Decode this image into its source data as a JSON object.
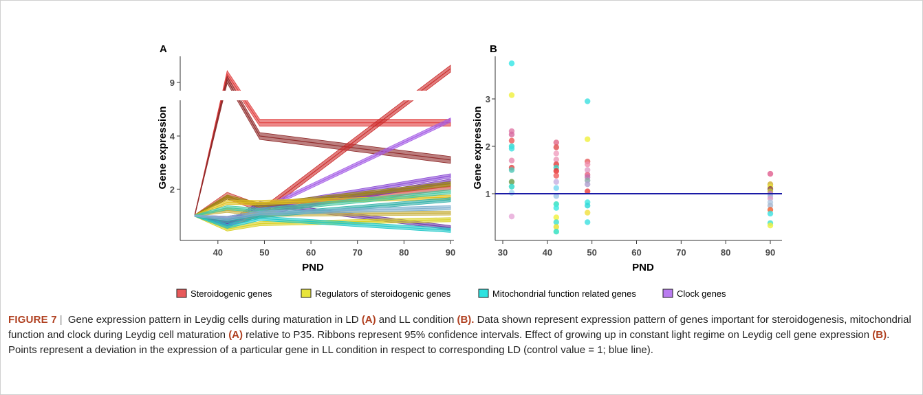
{
  "caption": {
    "figure_label": "FIGURE 7",
    "separator": "|",
    "parts": [
      {
        "text": " Gene expression pattern in Leydig cells during maturation in LD ",
        "bold": false
      },
      {
        "text": "(A)",
        "bold": true
      },
      {
        "text": " and LL condition ",
        "bold": false
      },
      {
        "text": "(B).",
        "bold": true
      },
      {
        "text": " Data shown represent expression pattern of genes important for steroidogenesis, mitochondrial function and clock during Leydig cell maturation ",
        "bold": false
      },
      {
        "text": "(A)",
        "bold": true
      },
      {
        "text": " relative to P35. Ribbons represent 95% confidence intervals. Effect of growing up in constant light regime on Leydig cell gene expression ",
        "bold": false
      },
      {
        "text": "(B)",
        "bold": true
      },
      {
        "text": ". Points represent a deviation in the expression of a particular gene in LL condition in respect to corresponding LD (control value = 1; blue line).",
        "bold": false
      }
    ]
  },
  "legend": [
    {
      "label": "Steroidogenic genes",
      "color": "#e8595a"
    },
    {
      "label": "Regulators of steroidogenic genes",
      "color": "#e8e43a"
    },
    {
      "label": "Mitochondrial function related genes",
      "color": "#2ee3e0"
    },
    {
      "label": "Clock genes",
      "color": "#b97cf0"
    }
  ],
  "chart_data": [
    {
      "panel": "A",
      "type": "line",
      "xlabel": "PND",
      "ylabel": "Gene expression",
      "xlim": [
        33,
        90
      ],
      "xticks": [
        40,
        50,
        60,
        70,
        80,
        90
      ],
      "yticks": [
        2,
        4,
        9
      ],
      "axis_break": "between 5 and 9",
      "ribbons": "95% confidence intervals",
      "series": [
        {
          "group": "Steroidogenic genes",
          "color": "#e03c3c",
          "x": [
            35,
            42,
            49,
            90
          ],
          "y": [
            1.0,
            9.3,
            4.5,
            4.5
          ]
        },
        {
          "group": "Steroidogenic genes",
          "color": "#8f2a2a",
          "x": [
            35,
            42,
            49,
            90
          ],
          "y": [
            1.0,
            9.1,
            4.0,
            3.1
          ]
        },
        {
          "group": "Steroidogenic genes",
          "color": "#cc2a2a",
          "x": [
            35,
            42,
            49,
            90
          ],
          "y": [
            1.0,
            0.7,
            1.1,
            9.5
          ]
        },
        {
          "group": "Steroidogenic genes",
          "color": "#d04a40",
          "x": [
            35,
            42,
            49,
            90
          ],
          "y": [
            1.0,
            1.75,
            1.3,
            2.1
          ]
        },
        {
          "group": "Clock genes",
          "color": "#a45ce6",
          "x": [
            35,
            42,
            49,
            90
          ],
          "y": [
            1.0,
            0.8,
            1.2,
            4.6
          ]
        },
        {
          "group": "Clock genes",
          "color": "#8c4cd6",
          "x": [
            35,
            42,
            49,
            90
          ],
          "y": [
            1.0,
            0.6,
            1.3,
            2.5
          ]
        },
        {
          "group": "Clock genes",
          "color": "#7d3fb8",
          "x": [
            35,
            42,
            49,
            90
          ],
          "y": [
            1.0,
            0.9,
            1.1,
            2.3
          ]
        },
        {
          "group": "Clock genes",
          "color": "#6a3aa8",
          "x": [
            35,
            42,
            49,
            90
          ],
          "y": [
            1.0,
            0.7,
            1.45,
            0.55
          ]
        },
        {
          "group": "Regulators of steroidogenic genes",
          "color": "#9a8a10",
          "x": [
            35,
            42,
            49,
            90
          ],
          "y": [
            1.0,
            1.7,
            1.4,
            2.2
          ]
        },
        {
          "group": "Regulators of steroidogenic genes",
          "color": "#e0c020",
          "x": [
            35,
            42,
            49,
            90
          ],
          "y": [
            1.0,
            1.5,
            1.5,
            1.7
          ]
        },
        {
          "group": "Regulators of steroidogenic genes",
          "color": "#d8d020",
          "x": [
            35,
            42,
            49,
            90
          ],
          "y": [
            1.0,
            0.5,
            0.7,
            0.85
          ]
        },
        {
          "group": "Regulators of steroidogenic genes",
          "color": "#c8b040",
          "x": [
            35,
            42,
            49,
            90
          ],
          "y": [
            1.0,
            1.2,
            1.05,
            1.1
          ]
        },
        {
          "group": "Mitochondrial function related genes",
          "color": "#20c8c8",
          "x": [
            35,
            42,
            49,
            90
          ],
          "y": [
            1.0,
            0.6,
            0.9,
            0.45
          ]
        },
        {
          "group": "Mitochondrial function related genes",
          "color": "#30b0a8",
          "x": [
            35,
            42,
            49,
            90
          ],
          "y": [
            1.0,
            0.8,
            1.0,
            1.6
          ]
        },
        {
          "group": "Mitochondrial function related genes",
          "color": "#48c8a0",
          "x": [
            35,
            42,
            49,
            90
          ],
          "y": [
            1.0,
            1.3,
            1.2,
            1.9
          ]
        },
        {
          "group": "Mitochondrial function related genes",
          "color": "#7fb0d0",
          "x": [
            35,
            42,
            49,
            90
          ],
          "y": [
            1.0,
            0.9,
            1.1,
            1.3
          ]
        }
      ]
    },
    {
      "panel": "B",
      "type": "scatter",
      "xlabel": "PND",
      "ylabel": "Gene expression",
      "xlim": [
        30,
        92
      ],
      "ylim": [
        0.15,
        3.85
      ],
      "xticks": [
        30,
        40,
        50,
        60,
        70,
        80,
        90
      ],
      "yticks": [
        1,
        2,
        3
      ],
      "reference_line": {
        "y": 1,
        "color": "#1a1aa6"
      },
      "points": [
        {
          "x": 32,
          "y": 3.75,
          "c": "#37e6e6"
        },
        {
          "x": 32,
          "y": 3.08,
          "c": "#f0f040"
        },
        {
          "x": 32,
          "y": 2.32,
          "c": "#e07aa8"
        },
        {
          "x": 32,
          "y": 2.25,
          "c": "#d76aa0"
        },
        {
          "x": 32,
          "y": 2.12,
          "c": "#ee5a5a"
        },
        {
          "x": 32,
          "y": 2.0,
          "c": "#36d8d0"
        },
        {
          "x": 32,
          "y": 1.95,
          "c": "#40e0e0"
        },
        {
          "x": 32,
          "y": 1.7,
          "c": "#e88ab0"
        },
        {
          "x": 32,
          "y": 1.55,
          "c": "#e04848"
        },
        {
          "x": 32,
          "y": 1.5,
          "c": "#50c8b8"
        },
        {
          "x": 32,
          "y": 1.25,
          "c": "#6a9c4a"
        },
        {
          "x": 32,
          "y": 1.15,
          "c": "#30d8c8"
        },
        {
          "x": 32,
          "y": 1.02,
          "c": "#a6d8f0"
        },
        {
          "x": 32,
          "y": 0.52,
          "c": "#e6a8d8"
        },
        {
          "x": 42,
          "y": 2.08,
          "c": "#e26a8a"
        },
        {
          "x": 42,
          "y": 1.98,
          "c": "#e05050"
        },
        {
          "x": 42,
          "y": 1.85,
          "c": "#f0a0c0"
        },
        {
          "x": 42,
          "y": 1.72,
          "c": "#ec9ab8"
        },
        {
          "x": 42,
          "y": 1.62,
          "c": "#e04040"
        },
        {
          "x": 42,
          "y": 1.55,
          "c": "#40d0c0"
        },
        {
          "x": 42,
          "y": 1.48,
          "c": "#e83030"
        },
        {
          "x": 42,
          "y": 1.38,
          "c": "#f06060"
        },
        {
          "x": 42,
          "y": 1.25,
          "c": "#c8b0e0"
        },
        {
          "x": 42,
          "y": 1.12,
          "c": "#7ad8f0"
        },
        {
          "x": 42,
          "y": 0.95,
          "c": "#a0c8e8"
        },
        {
          "x": 42,
          "y": 0.78,
          "c": "#30e0c0"
        },
        {
          "x": 42,
          "y": 0.7,
          "c": "#40e8e0"
        },
        {
          "x": 42,
          "y": 0.5,
          "c": "#f0f040"
        },
        {
          "x": 42,
          "y": 0.4,
          "c": "#40e0d0"
        },
        {
          "x": 42,
          "y": 0.3,
          "c": "#e8e030"
        },
        {
          "x": 42,
          "y": 0.2,
          "c": "#30e0c0"
        },
        {
          "x": 49,
          "y": 2.95,
          "c": "#40e0e0"
        },
        {
          "x": 49,
          "y": 2.15,
          "c": "#f0f040"
        },
        {
          "x": 49,
          "y": 1.68,
          "c": "#e86060"
        },
        {
          "x": 49,
          "y": 1.62,
          "c": "#f090b0"
        },
        {
          "x": 49,
          "y": 1.5,
          "c": "#e0a0c8"
        },
        {
          "x": 49,
          "y": 1.4,
          "c": "#e86080"
        },
        {
          "x": 49,
          "y": 1.35,
          "c": "#c070b0"
        },
        {
          "x": 49,
          "y": 1.28,
          "c": "#8aa8a8"
        },
        {
          "x": 49,
          "y": 1.2,
          "c": "#b0a0d0"
        },
        {
          "x": 49,
          "y": 1.05,
          "c": "#e84040"
        },
        {
          "x": 49,
          "y": 0.82,
          "c": "#40e8e0"
        },
        {
          "x": 49,
          "y": 0.75,
          "c": "#30d8d8"
        },
        {
          "x": 49,
          "y": 0.6,
          "c": "#f0e040"
        },
        {
          "x": 49,
          "y": 0.4,
          "c": "#40e0e0"
        },
        {
          "x": 90,
          "y": 1.42,
          "c": "#e06090"
        },
        {
          "x": 90,
          "y": 1.2,
          "c": "#d0b030"
        },
        {
          "x": 90,
          "y": 1.15,
          "c": "#e8e040"
        },
        {
          "x": 90,
          "y": 1.1,
          "c": "#8a4a4a"
        },
        {
          "x": 90,
          "y": 1.05,
          "c": "#c0c040"
        },
        {
          "x": 90,
          "y": 1.0,
          "c": "#c080c0"
        },
        {
          "x": 90,
          "y": 0.95,
          "c": "#a0c0e0"
        },
        {
          "x": 90,
          "y": 0.9,
          "c": "#e0a0c8"
        },
        {
          "x": 90,
          "y": 0.82,
          "c": "#b0c8e0"
        },
        {
          "x": 90,
          "y": 0.75,
          "c": "#a8b8d0"
        },
        {
          "x": 90,
          "y": 0.66,
          "c": "#f06030"
        },
        {
          "x": 90,
          "y": 0.58,
          "c": "#40e0e0"
        },
        {
          "x": 90,
          "y": 0.38,
          "c": "#40e0d0"
        },
        {
          "x": 90,
          "y": 0.33,
          "c": "#f0f040"
        }
      ]
    }
  ]
}
